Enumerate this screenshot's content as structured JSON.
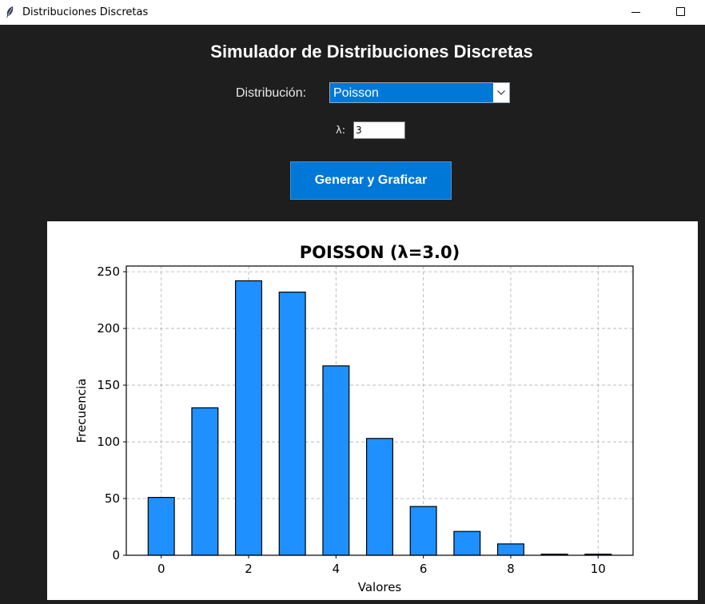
{
  "window": {
    "title": "Distribuciones Discretas",
    "icon": "feather-icon"
  },
  "heading": "Simulador de Distribuciones Discretas",
  "controls": {
    "distribution_label": "Distribución:",
    "distribution_value": "Poisson",
    "lambda_label": "λ:",
    "lambda_value": "3",
    "generate_button": "Generar y Graficar"
  },
  "colors": {
    "background": "#1e1e1e",
    "accent": "#0078d7",
    "bar_fill": "#1e90ff",
    "bar_edge": "#000000"
  },
  "chart_data": {
    "type": "bar",
    "title": "POISSON (λ=3.0)",
    "xlabel": "Valores",
    "ylabel": "Frecuencia",
    "x": [
      0,
      1,
      2,
      3,
      4,
      5,
      6,
      7,
      8,
      9,
      10
    ],
    "values": [
      51,
      130,
      242,
      232,
      167,
      103,
      43,
      21,
      10,
      1,
      1
    ],
    "xlim": [
      -0.8,
      10.8
    ],
    "ylim": [
      0,
      255
    ],
    "xticks": [
      "0",
      "2",
      "4",
      "6",
      "8",
      "10"
    ],
    "yticks": [
      "0",
      "50",
      "100",
      "150",
      "200",
      "250"
    ],
    "grid": true,
    "grid_style": "dashed"
  }
}
